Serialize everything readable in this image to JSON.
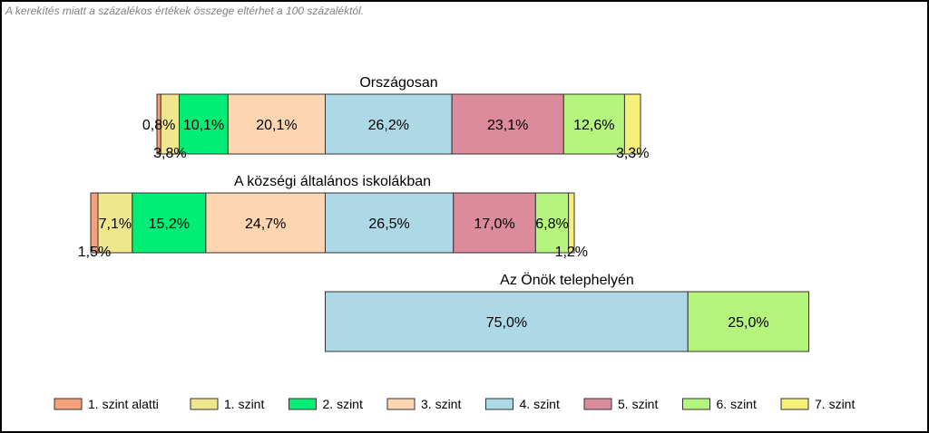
{
  "note": "A kerekítés miatt a  százalékos értékek összege eltérhet a 100 százaléktól.",
  "chart_data": {
    "type": "bar",
    "orientation": "horizontal",
    "stacked": true,
    "grid": false,
    "legend_position": "bottom",
    "categories": [
      "Országosan",
      "A községi általános iskolákban",
      "Az Önök telephelyén"
    ],
    "series": [
      {
        "name": "1. szint alatti",
        "color": "#f4a07a",
        "values": [
          0.8,
          1.5,
          0
        ],
        "labels": [
          "0,8%",
          "1,5%",
          ""
        ]
      },
      {
        "name": "1. szint",
        "color": "#f0e68c",
        "values": [
          3.8,
          7.1,
          0
        ],
        "labels": [
          "3,8%",
          "7,1%",
          ""
        ]
      },
      {
        "name": "2. szint",
        "color": "#00ee76",
        "values": [
          10.1,
          15.2,
          0
        ],
        "labels": [
          "10,1%",
          "15,2%",
          ""
        ]
      },
      {
        "name": "3. szint",
        "color": "#fdd5b1",
        "values": [
          20.1,
          24.7,
          0
        ],
        "labels": [
          "20,1%",
          "24,7%",
          ""
        ]
      },
      {
        "name": "4. szint",
        "color": "#add8e6",
        "values": [
          26.2,
          26.5,
          75.0
        ],
        "labels": [
          "26,2%",
          "26,5%",
          "75,0%"
        ]
      },
      {
        "name": "5. szint",
        "color": "#db8b9b",
        "values": [
          23.1,
          17.0,
          0
        ],
        "labels": [
          "23,1%",
          "17,0%",
          ""
        ]
      },
      {
        "name": "6. szint",
        "color": "#b5f57e",
        "values": [
          12.6,
          6.8,
          25.0
        ],
        "labels": [
          "12,6%",
          "6,8%",
          "25,0%"
        ]
      },
      {
        "name": "7. szint",
        "color": "#f5f07a",
        "values": [
          3.3,
          1.2,
          0
        ],
        "labels": [
          "3,3%",
          "1,2%",
          ""
        ]
      }
    ]
  }
}
